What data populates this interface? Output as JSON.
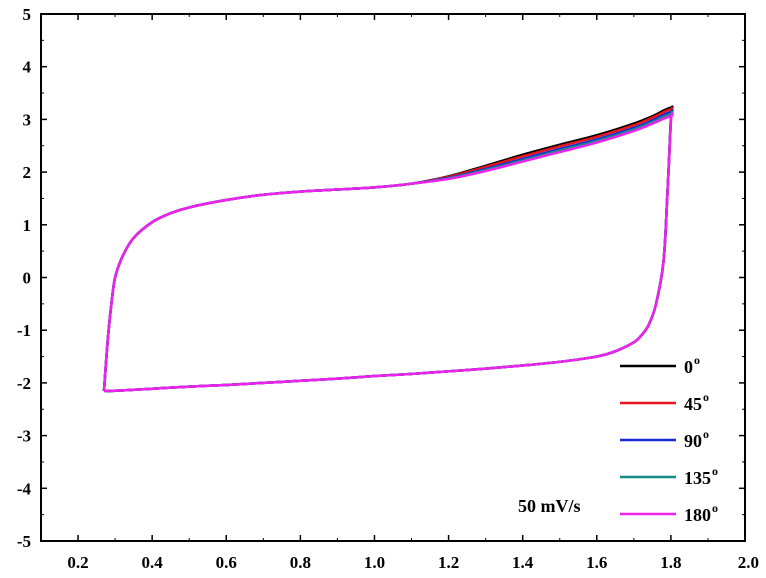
{
  "chart_data": {
    "type": "line",
    "title": "",
    "xlabel": "",
    "ylabel": "",
    "xlim": [
      0.1,
      2.0
    ],
    "ylim": [
      -5,
      5
    ],
    "grid": false,
    "legend_position": "bottom-right",
    "x_ticks": [
      0.2,
      0.4,
      0.6,
      0.8,
      1.0,
      1.2,
      1.4,
      1.6,
      1.8,
      2.0
    ],
    "x_tick_labels": [
      "0.2",
      "0.4",
      "0.6",
      "0.8",
      "1.0",
      "1.2",
      "1.4",
      "1.6",
      "1.8",
      "2.0"
    ],
    "y_ticks": [
      -5,
      -4,
      -3,
      -2,
      -1,
      0,
      1,
      2,
      3,
      4,
      5
    ],
    "y_tick_labels": [
      "-5",
      "-4",
      "-3",
      "-2",
      "-1",
      "0",
      "1",
      "2",
      "3",
      "4",
      "5"
    ],
    "annotation": "50 mV/s",
    "series": [
      {
        "name": "0",
        "color": "#000000",
        "x": [
          0.27,
          0.28,
          0.29,
          0.3,
          0.32,
          0.35,
          0.4,
          0.45,
          0.5,
          0.6,
          0.7,
          0.8,
          0.9,
          1.0,
          1.1,
          1.2,
          1.3,
          1.4,
          1.5,
          1.6,
          1.7,
          1.75,
          1.8,
          1.8,
          1.79,
          1.78,
          1.76,
          1.74,
          1.72,
          1.7,
          1.65,
          1.6,
          1.5,
          1.4,
          1.3,
          1.2,
          1.1,
          1.0,
          0.9,
          0.8,
          0.7,
          0.6,
          0.5,
          0.4,
          0.3,
          0.27
        ],
        "y": [
          -2.15,
          -1.2,
          -0.5,
          0.0,
          0.4,
          0.75,
          1.05,
          1.22,
          1.33,
          1.47,
          1.57,
          1.63,
          1.67,
          1.71,
          1.78,
          1.92,
          2.12,
          2.33,
          2.52,
          2.7,
          2.92,
          3.06,
          3.22,
          3.05,
          1.5,
          0.3,
          -0.5,
          -0.9,
          -1.1,
          -1.23,
          -1.4,
          -1.5,
          -1.6,
          -1.67,
          -1.73,
          -1.78,
          -1.83,
          -1.87,
          -1.92,
          -1.96,
          -2.0,
          -2.04,
          -2.07,
          -2.11,
          -2.15,
          -2.15
        ]
      },
      {
        "name": "45",
        "color": "#e8141c",
        "x": [
          0.27,
          0.28,
          0.29,
          0.3,
          0.32,
          0.35,
          0.4,
          0.45,
          0.5,
          0.6,
          0.7,
          0.8,
          0.9,
          1.0,
          1.1,
          1.2,
          1.3,
          1.4,
          1.5,
          1.6,
          1.7,
          1.75,
          1.8,
          1.8,
          1.79,
          1.78,
          1.76,
          1.74,
          1.72,
          1.7,
          1.65,
          1.6,
          1.5,
          1.4,
          1.3,
          1.2,
          1.1,
          1.0,
          0.9,
          0.8,
          0.7,
          0.6,
          0.5,
          0.4,
          0.3,
          0.27
        ],
        "y": [
          -2.15,
          -1.2,
          -0.5,
          0.0,
          0.4,
          0.75,
          1.05,
          1.22,
          1.33,
          1.47,
          1.57,
          1.63,
          1.67,
          1.71,
          1.78,
          1.91,
          2.1,
          2.3,
          2.49,
          2.67,
          2.89,
          3.03,
          3.19,
          3.03,
          1.5,
          0.3,
          -0.5,
          -0.9,
          -1.1,
          -1.23,
          -1.4,
          -1.5,
          -1.6,
          -1.67,
          -1.73,
          -1.78,
          -1.83,
          -1.87,
          -1.92,
          -1.96,
          -2.0,
          -2.04,
          -2.07,
          -2.11,
          -2.15,
          -2.15
        ]
      },
      {
        "name": "90",
        "color": "#1a2bd6",
        "x": [
          0.27,
          0.28,
          0.29,
          0.3,
          0.32,
          0.35,
          0.4,
          0.45,
          0.5,
          0.6,
          0.7,
          0.8,
          0.9,
          1.0,
          1.1,
          1.2,
          1.3,
          1.4,
          1.5,
          1.6,
          1.7,
          1.75,
          1.8,
          1.8,
          1.79,
          1.78,
          1.76,
          1.74,
          1.72,
          1.7,
          1.65,
          1.6,
          1.5,
          1.4,
          1.3,
          1.2,
          1.1,
          1.0,
          0.9,
          0.8,
          0.7,
          0.6,
          0.5,
          0.4,
          0.3,
          0.27
        ],
        "y": [
          -2.15,
          -1.2,
          -0.5,
          0.0,
          0.4,
          0.75,
          1.05,
          1.22,
          1.33,
          1.47,
          1.57,
          1.63,
          1.67,
          1.71,
          1.78,
          1.89,
          2.06,
          2.25,
          2.44,
          2.62,
          2.84,
          2.98,
          3.14,
          3.0,
          1.5,
          0.3,
          -0.5,
          -0.9,
          -1.1,
          -1.23,
          -1.4,
          -1.5,
          -1.6,
          -1.67,
          -1.73,
          -1.78,
          -1.83,
          -1.87,
          -1.92,
          -1.96,
          -2.0,
          -2.04,
          -2.07,
          -2.11,
          -2.15,
          -2.15
        ]
      },
      {
        "name": "135",
        "color": "#168a86",
        "x": [
          0.27,
          0.28,
          0.29,
          0.3,
          0.32,
          0.35,
          0.4,
          0.45,
          0.5,
          0.6,
          0.7,
          0.8,
          0.9,
          1.0,
          1.1,
          1.2,
          1.3,
          1.4,
          1.5,
          1.6,
          1.7,
          1.75,
          1.8,
          1.8,
          1.79,
          1.78,
          1.76,
          1.74,
          1.72,
          1.7,
          1.65,
          1.6,
          1.5,
          1.4,
          1.3,
          1.2,
          1.1,
          1.0,
          0.9,
          0.8,
          0.7,
          0.6,
          0.5,
          0.4,
          0.3,
          0.27
        ],
        "y": [
          -2.15,
          -1.2,
          -0.5,
          0.0,
          0.4,
          0.75,
          1.05,
          1.22,
          1.33,
          1.47,
          1.57,
          1.63,
          1.67,
          1.71,
          1.78,
          1.88,
          2.04,
          2.22,
          2.41,
          2.59,
          2.81,
          2.95,
          3.1,
          2.98,
          1.5,
          0.3,
          -0.5,
          -0.9,
          -1.1,
          -1.23,
          -1.4,
          -1.5,
          -1.6,
          -1.67,
          -1.73,
          -1.78,
          -1.83,
          -1.87,
          -1.92,
          -1.96,
          -2.0,
          -2.04,
          -2.07,
          -2.11,
          -2.15,
          -2.15
        ]
      },
      {
        "name": "180",
        "color": "#ee22ee",
        "x": [
          0.27,
          0.28,
          0.29,
          0.3,
          0.32,
          0.35,
          0.4,
          0.45,
          0.5,
          0.6,
          0.7,
          0.8,
          0.9,
          1.0,
          1.1,
          1.2,
          1.3,
          1.4,
          1.5,
          1.6,
          1.7,
          1.75,
          1.8,
          1.8,
          1.79,
          1.78,
          1.76,
          1.74,
          1.72,
          1.7,
          1.65,
          1.6,
          1.5,
          1.4,
          1.3,
          1.2,
          1.1,
          1.0,
          0.9,
          0.8,
          0.7,
          0.6,
          0.5,
          0.4,
          0.3,
          0.27
        ],
        "y": [
          -2.15,
          -1.2,
          -0.5,
          0.0,
          0.4,
          0.75,
          1.05,
          1.22,
          1.33,
          1.47,
          1.57,
          1.63,
          1.67,
          1.71,
          1.78,
          1.87,
          2.02,
          2.2,
          2.38,
          2.56,
          2.78,
          2.92,
          3.06,
          2.96,
          1.5,
          0.3,
          -0.5,
          -0.9,
          -1.1,
          -1.23,
          -1.4,
          -1.5,
          -1.6,
          -1.67,
          -1.73,
          -1.78,
          -1.83,
          -1.87,
          -1.92,
          -1.96,
          -2.0,
          -2.04,
          -2.07,
          -2.11,
          -2.15,
          -2.15
        ]
      }
    ],
    "legend": [
      {
        "label": "0",
        "sup": "o",
        "color": "#000000"
      },
      {
        "label": "45",
        "sup": "o",
        "color": "#e8141c"
      },
      {
        "label": "90",
        "sup": "o",
        "color": "#1a2bd6"
      },
      {
        "label": "135",
        "sup": "o",
        "color": "#168a86"
      },
      {
        "label": "180",
        "sup": "o",
        "color": "#ee22ee"
      }
    ]
  }
}
